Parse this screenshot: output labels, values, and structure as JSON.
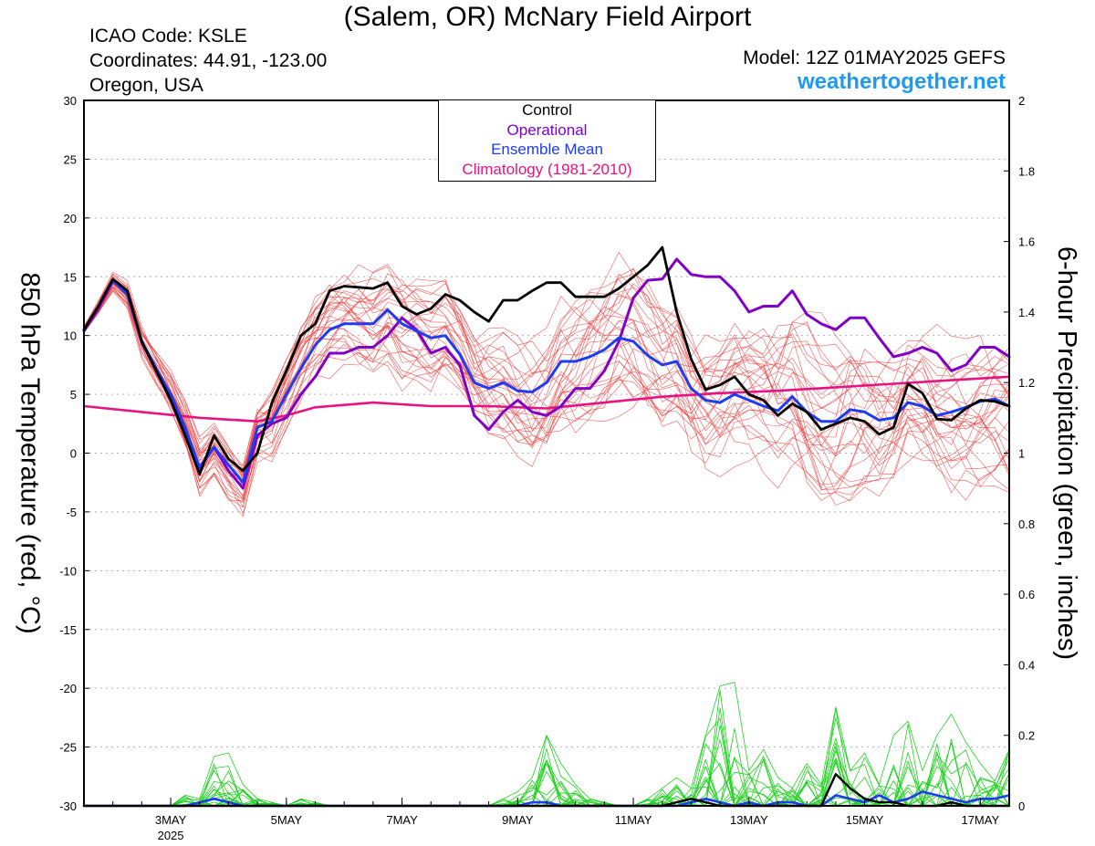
{
  "header": {
    "title": "(Salem, OR) McNary Field Airport",
    "icao": "ICAO Code: KSLE",
    "coords": "Coordinates: 44.91, -123.00",
    "region": "Oregon, USA",
    "model": "Model: 12Z 01MAY2025 GEFS",
    "site": "weathertogether.net"
  },
  "colors": {
    "control": "#000000",
    "operational": "#8000c8",
    "ensemble_mean": "#1e3cf0",
    "climatology": "#e61482",
    "members": "#f04040",
    "precip": "#1ed21e",
    "site": "#1e9bf0"
  },
  "chart_data": {
    "type": "line",
    "ylabel_left": "850 hPa Temperature (red, °C)",
    "ylabel_right": "6-hour Precipitation (green, inches)",
    "ylim_left": [
      -30,
      30
    ],
    "ylim_right": [
      0,
      2
    ],
    "yticks_left": [
      30,
      25,
      20,
      15,
      10,
      5,
      0,
      -5,
      -10,
      -15,
      -20,
      -25,
      -30
    ],
    "yticks_right": [
      "2",
      "1.8",
      "1.6",
      "1.4",
      "1.2",
      "1",
      "0.8",
      "0.6",
      "0.4",
      "0.2",
      "0"
    ],
    "x_unit": "hours since 12Z 01MAY2025",
    "xlim": [
      0,
      384
    ],
    "xticks": [
      {
        "hour": 36,
        "label": "3MAY",
        "sub": "2025"
      },
      {
        "hour": 84,
        "label": "5MAY",
        "sub": ""
      },
      {
        "hour": 132,
        "label": "7MAY",
        "sub": ""
      },
      {
        "hour": 180,
        "label": "9MAY",
        "sub": ""
      },
      {
        "hour": 228,
        "label": "11MAY",
        "sub": ""
      },
      {
        "hour": 276,
        "label": "13MAY",
        "sub": ""
      },
      {
        "hour": 324,
        "label": "15MAY",
        "sub": ""
      },
      {
        "hour": 372,
        "label": "17MAY",
        "sub": ""
      }
    ],
    "grid": true,
    "legend": {
      "position": "top-center",
      "entries": [
        "Control",
        "Operational",
        "Ensemble Mean",
        "Climatology (1981-2010)"
      ]
    },
    "series": [
      {
        "name": "Control",
        "color": "#000000",
        "x": [
          0,
          6,
          12,
          18,
          24,
          30,
          36,
          42,
          48,
          54,
          60,
          66,
          72,
          78,
          84,
          90,
          96,
          102,
          108,
          114,
          120,
          126,
          132,
          138,
          144,
          150,
          156,
          162,
          168,
          174,
          180,
          186,
          192,
          198,
          204,
          210,
          216,
          222,
          228,
          234,
          240,
          246,
          252,
          258,
          264,
          270,
          276,
          282,
          288,
          294,
          300,
          306,
          312,
          318,
          324,
          330,
          336,
          342,
          348,
          354,
          360,
          366,
          372,
          378,
          384
        ],
        "y": [
          10.5,
          12.5,
          14.8,
          13.8,
          9.5,
          7,
          4.5,
          1.5,
          -1.8,
          1.5,
          -0.5,
          -1.5,
          0,
          4.3,
          7,
          10,
          11,
          13.8,
          14.2,
          14.1,
          14,
          14.5,
          12.5,
          11.8,
          12.3,
          13.5,
          13,
          12,
          11.2,
          13,
          13,
          13.8,
          14.5,
          14.5,
          13.3,
          13.3,
          13.3,
          14,
          15,
          16,
          17.5,
          12,
          8,
          5.4,
          5.8,
          6.5,
          5,
          4.5,
          3.2,
          4.2,
          3.5,
          2,
          2.5,
          3,
          2.7,
          1.6,
          2.2,
          5.9,
          5.1,
          2.9,
          2.8,
          3.8,
          4.5,
          4.4,
          4
        ]
      },
      {
        "name": "Operational",
        "color": "#8000c8",
        "x": [
          0,
          6,
          12,
          18,
          24,
          30,
          36,
          42,
          48,
          54,
          60,
          66,
          72,
          78,
          84,
          90,
          96,
          102,
          108,
          114,
          120,
          126,
          132,
          138,
          144,
          150,
          156,
          162,
          168,
          174,
          180,
          186,
          192,
          198,
          204,
          210,
          216,
          222,
          228,
          234,
          240,
          246,
          252,
          258,
          264,
          270,
          276,
          282,
          288,
          294,
          300,
          306,
          312,
          318,
          324,
          330,
          336,
          342,
          348,
          354,
          360,
          366,
          372,
          378,
          384
        ],
        "y": [
          10.4,
          12.3,
          14.6,
          13.8,
          9.4,
          7,
          5,
          2,
          -1.3,
          0.5,
          -1.5,
          -3,
          1.5,
          2.5,
          3,
          5,
          6.5,
          8.5,
          8.5,
          9,
          9,
          10,
          11.5,
          10.5,
          8.5,
          9,
          7.5,
          3.2,
          2,
          3.5,
          4.5,
          3.5,
          3.2,
          4,
          5.5,
          5.5,
          7,
          9.5,
          13.2,
          14.7,
          14.8,
          16.5,
          15.2,
          15,
          15,
          13.8,
          12,
          12.5,
          12.5,
          13.8,
          11.8,
          11,
          10.5,
          11.5,
          11.5,
          9.8,
          8.2,
          8.5,
          9,
          8.5,
          7,
          7.5,
          9,
          9,
          8.2
        ]
      },
      {
        "name": "Ensemble Mean",
        "color": "#1e3cf0",
        "x": [
          0,
          6,
          12,
          18,
          24,
          30,
          36,
          42,
          48,
          54,
          60,
          66,
          72,
          78,
          84,
          90,
          96,
          102,
          108,
          114,
          120,
          126,
          132,
          138,
          144,
          150,
          156,
          162,
          168,
          174,
          180,
          186,
          192,
          198,
          204,
          210,
          216,
          222,
          228,
          234,
          240,
          246,
          252,
          258,
          264,
          270,
          276,
          282,
          288,
          294,
          300,
          306,
          312,
          318,
          324,
          330,
          336,
          342,
          348,
          354,
          360,
          366,
          372,
          378,
          384
        ],
        "y": [
          10.5,
          12.5,
          14.7,
          13.5,
          9.5,
          7.2,
          5,
          2.2,
          -1.2,
          0.5,
          -1,
          -2.5,
          2.2,
          2.7,
          5,
          7.2,
          9.2,
          10.5,
          11,
          11,
          11,
          12.2,
          11,
          10.4,
          9.8,
          10,
          8.4,
          6,
          5.5,
          6,
          5.3,
          5.2,
          6,
          7.8,
          7.8,
          8.2,
          8.8,
          9.8,
          9.5,
          8.3,
          7.5,
          7.8,
          5.5,
          4.5,
          4.3,
          5,
          4.5,
          4,
          3.6,
          4.8,
          3.5,
          2.7,
          2.7,
          3.7,
          3.5,
          2.8,
          3,
          4.3,
          4,
          3.2,
          3.5,
          3.9,
          4.4,
          4.6,
          4
        ]
      },
      {
        "name": "Climatology (1981-2010)",
        "color": "#e61482",
        "x": [
          0,
          24,
          48,
          72,
          84,
          96,
          120,
          144,
          168,
          192,
          216,
          240,
          264,
          288,
          312,
          336,
          360,
          384
        ],
        "y": [
          4,
          3.5,
          3,
          2.7,
          3.2,
          3.9,
          4.3,
          4,
          4,
          3.8,
          4.3,
          4.8,
          5.1,
          5.3,
          5.6,
          5.9,
          6.2,
          6.5
        ]
      }
    ],
    "ensemble_members": {
      "name": "ensemble members",
      "color": "#f04040",
      "count": 30,
      "x_start": 0,
      "x_step": 6,
      "spread": [
        0.2,
        0.4,
        0.6,
        0.8,
        1,
        1.2,
        1.4,
        1.6,
        1.8,
        1.8,
        2,
        2,
        2.2,
        2.4,
        2.5,
        2.6,
        2.8,
        3,
        3,
        3,
        3.2,
        3.2,
        3.4,
        3.4,
        3.5,
        3.6,
        3.8,
        3.8,
        4,
        4,
        4,
        4.2,
        4.2,
        4.2,
        4.4,
        4.4,
        4.4,
        4.4,
        4.6,
        4.6,
        4.6,
        4.6,
        4.6,
        4.8,
        4.8,
        4.8,
        4.8,
        4.8,
        5,
        5,
        5,
        5,
        5,
        5,
        5,
        5,
        5,
        5,
        5,
        5,
        5,
        5,
        5,
        5,
        5
      ]
    },
    "precipitation": {
      "unit": "inches per 6 hours",
      "axis": "right",
      "x_start": 0,
      "x_step": 6,
      "control": [
        0,
        0,
        0,
        0,
        0,
        0,
        0,
        0,
        0,
        0,
        0,
        0,
        0,
        0,
        0,
        0,
        0,
        0,
        0,
        0,
        0,
        0,
        0,
        0,
        0,
        0,
        0,
        0,
        0,
        0,
        0,
        0,
        0,
        0,
        0,
        0,
        0,
        0,
        0,
        0,
        0,
        0.01,
        0.02,
        0.01,
        0,
        0,
        0,
        0,
        0,
        0,
        0,
        0,
        0.09,
        0.05,
        0.02,
        0.01,
        0.01,
        0,
        0,
        0,
        0.01,
        0,
        0,
        0,
        0
      ],
      "mean": [
        0,
        0,
        0,
        0,
        0,
        0,
        0,
        0,
        0.01,
        0.02,
        0.01,
        0,
        0,
        0,
        0,
        0,
        0,
        0,
        0,
        0,
        0,
        0,
        0,
        0,
        0,
        0,
        0,
        0,
        0,
        0,
        0,
        0.01,
        0.01,
        0,
        0,
        0,
        0,
        0,
        0,
        0,
        0,
        0,
        0.01,
        0.02,
        0.01,
        0,
        0.01,
        0,
        0.01,
        0.01,
        0,
        0,
        0.03,
        0.02,
        0.01,
        0.03,
        0.01,
        0.02,
        0.04,
        0.03,
        0.02,
        0.01,
        0.02,
        0.02,
        0.03
      ],
      "max": [
        0,
        0,
        0,
        0,
        0,
        0,
        0,
        0.03,
        0.02,
        0.14,
        0.15,
        0.06,
        0.02,
        0.01,
        0,
        0.02,
        0.01,
        0,
        0,
        0,
        0,
        0,
        0,
        0,
        0,
        0,
        0,
        0,
        0,
        0.02,
        0.04,
        0.08,
        0.2,
        0.12,
        0.06,
        0.02,
        0.01,
        0,
        0,
        0.02,
        0.05,
        0.08,
        0.05,
        0.2,
        0.34,
        0.35,
        0.1,
        0.16,
        0.08,
        0.05,
        0.12,
        0.06,
        0.28,
        0.1,
        0.15,
        0.06,
        0.2,
        0.24,
        0.1,
        0.2,
        0.26,
        0.18,
        0.12,
        0.07,
        0.16
      ]
    }
  }
}
